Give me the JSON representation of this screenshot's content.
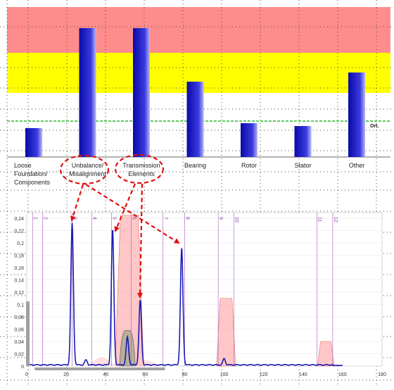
{
  "chart_data": [
    {
      "type": "bar",
      "title": "",
      "categories": [
        "Loose\nFoundation/\nComponents",
        "Unbalance/\nMisalignment",
        "Transmission\nElements",
        "Bearing",
        "Rotor",
        "Stator",
        "Other"
      ],
      "values": [
        41,
        183,
        183,
        107,
        48,
        44,
        120
      ],
      "ylim": [
        0,
        213
      ],
      "bands": [
        {
          "from": 148,
          "to": 213,
          "color": "#ff8c8c"
        },
        {
          "from": 91,
          "to": 148,
          "color": "#ffff00"
        }
      ],
      "threshold": {
        "value": 51,
        "label": "Ort.",
        "color": "#00aa00"
      },
      "bar_color": "#2323c8",
      "grid": "dotted"
    },
    {
      "type": "line",
      "title": "",
      "xlim": [
        0,
        180
      ],
      "ylim": [
        0,
        0.24
      ],
      "x_ticks": [
        "0",
        "20",
        "40",
        "60",
        "80",
        "100",
        "120",
        "140",
        "160",
        "180"
      ],
      "y_ticks": [
        "0",
        "0,02",
        "0,04",
        "0,06",
        "0,08",
        "0,1",
        "0,12",
        "0,14",
        "0,16",
        "0,18",
        "0,2",
        "0,22",
        "0,24"
      ],
      "markers": [
        "1",
        "2",
        "3",
        "4",
        "5",
        "6",
        "7",
        "8",
        "9",
        "10",
        "11",
        "12"
      ],
      "marker_x": [
        3,
        8,
        23,
        33,
        43,
        53,
        69,
        80,
        97,
        105,
        147,
        155
      ],
      "peaks": [
        {
          "x": 23,
          "y": 0.23
        },
        {
          "x": 43.5,
          "y": 0.22
        },
        {
          "x": 57.5,
          "y": 0.105
        },
        {
          "x": 78.5,
          "y": 0.19
        },
        {
          "x": 51,
          "y": 0.045
        },
        {
          "x": 100,
          "y": 0.01
        },
        {
          "x": 30,
          "y": 0.008
        }
      ],
      "pink_bands": [
        {
          "from": 47,
          "to": 57,
          "peak": 0.245
        },
        {
          "from": 98,
          "to": 104,
          "peak": 0.11
        },
        {
          "from": 149,
          "to": 154,
          "peak": 0.04
        }
      ],
      "line_color": "#1a1ab4",
      "band_color": "#ff9999"
    }
  ]
}
